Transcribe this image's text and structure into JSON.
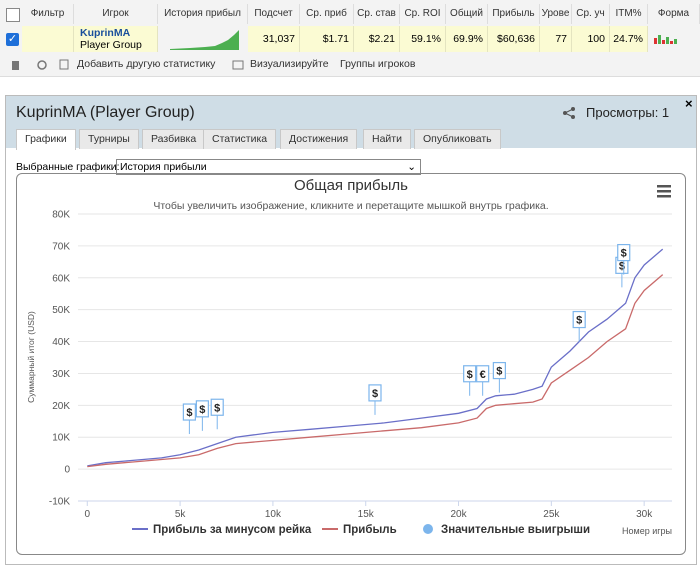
{
  "table": {
    "headers": [
      "Фильтр",
      "Игрок",
      "История прибыл",
      "Подсчет",
      "Ср. приб",
      "Ср. став",
      "Ср. ROI",
      "Общий",
      "Прибыль",
      "Урове",
      "Ср. уч",
      "ITM%",
      "Форма"
    ],
    "player": "KuprinMA",
    "group": "Player Group",
    "cells": [
      "31,037",
      "$1.71",
      "$2.21",
      "59.1%",
      "69.9%",
      "$60,636",
      "77",
      "100",
      "24.7%"
    ]
  },
  "toolbar": [
    "Добавить другую статистику",
    "Визуализируйте",
    "Группы игроков"
  ],
  "panel": {
    "title": "KuprinMA (Player Group)",
    "views": "Просмотры: 1",
    "tabs": [
      "Графики",
      "Турниры",
      "Разбивка",
      "Статистика",
      "Достижения",
      "Найти",
      "Опубликовать"
    ],
    "select_label": "Выбранные графики:",
    "select_value": "История прибыли"
  },
  "chart_data": {
    "type": "line",
    "title": "Общая прибыль",
    "subtitle": "Чтобы увеличить изображение, кликните и перетащите мышкой внутрь графика.",
    "y_label": "Суммарный итог (USD)",
    "x_label": "Номер игры",
    "xlim": [
      -500,
      31500
    ],
    "xticks": [
      0,
      {
        "value": 5000,
        "label": "5k"
      },
      {
        "value": 10000,
        "label": "10k"
      },
      {
        "value": 15000,
        "label": "15k"
      },
      {
        "value": 20000,
        "label": "20k"
      },
      {
        "value": 25000,
        "label": "25k"
      },
      {
        "value": 30000,
        "label": "30k"
      }
    ],
    "ylim": [
      -10000,
      80000
    ],
    "yticks": [
      {
        "value": -10000,
        "label": "-10K"
      },
      0,
      {
        "value": 10000,
        "label": "10K"
      },
      {
        "value": 20000,
        "label": "20K"
      },
      {
        "value": 30000,
        "label": "30K"
      },
      {
        "value": 40000,
        "label": "40K"
      },
      {
        "value": 50000,
        "label": "50K"
      },
      {
        "value": 60000,
        "label": "60K"
      },
      {
        "value": 70000,
        "label": "70K"
      },
      {
        "value": 80000,
        "label": "80K"
      }
    ],
    "grid": true,
    "x": [
      0,
      1000,
      2000,
      3000,
      4000,
      5000,
      6000,
      7000,
      8000,
      10000,
      12000,
      14000,
      16000,
      18000,
      20000,
      21000,
      21500,
      22000,
      23000,
      24000,
      24500,
      25000,
      26000,
      27000,
      28000,
      29000,
      29500,
      30000,
      31000
    ],
    "series": [
      {
        "name": "Прибыль за минусом рейка",
        "color": "#6a6fc8",
        "values": [
          1000,
          2000,
          2500,
          3000,
          3500,
          4500,
          6000,
          8000,
          10000,
          11500,
          12500,
          13500,
          14500,
          16000,
          17500,
          19000,
          22000,
          23000,
          23500,
          25000,
          26000,
          32000,
          37000,
          43000,
          47000,
          52000,
          60000,
          64000,
          69000
        ]
      },
      {
        "name": "Прибыль",
        "color": "#c96a6a",
        "values": [
          800,
          1500,
          2000,
          2500,
          3000,
          3500,
          4500,
          6500,
          8000,
          9000,
          10000,
          11000,
          12000,
          13000,
          14500,
          16000,
          19000,
          20000,
          20500,
          21000,
          22000,
          27000,
          31000,
          35000,
          40000,
          44000,
          52000,
          56000,
          61000
        ]
      }
    ],
    "flags": {
      "name": "Значительные выигрыши",
      "color": "#7cb5ec",
      "x": [
        5500,
        6200,
        7000,
        15500,
        20600,
        21300,
        22200,
        26500,
        28800,
        28900
      ],
      "values": [
        11000,
        12000,
        12500,
        17000,
        23000,
        23000,
        24000,
        40000,
        57000,
        61000
      ],
      "labels": [
        "$",
        "$",
        "$",
        "$",
        "$",
        "€",
        "$",
        "$",
        "$",
        "$"
      ]
    }
  }
}
